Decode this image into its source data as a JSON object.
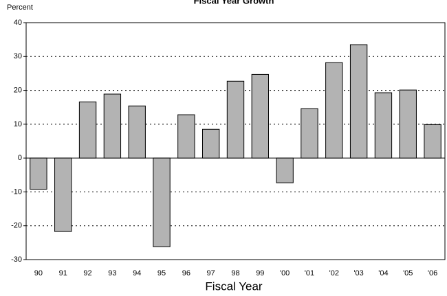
{
  "chart_data": {
    "type": "bar",
    "title": "Fiscal Year Growth",
    "y_label": "Percent",
    "x_label": "Fiscal Year",
    "categories": [
      "90",
      "91",
      "92",
      "93",
      "94",
      "95",
      "96",
      "97",
      "98",
      "99",
      "'00",
      "'01",
      "'02",
      "'03",
      "'04",
      "'05",
      "'06"
    ],
    "values": [
      -9.2,
      -21.7,
      16.6,
      18.9,
      15.4,
      -26.2,
      12.8,
      8.5,
      22.7,
      24.7,
      -7.3,
      14.6,
      28.2,
      33.5,
      19.3,
      20.1,
      9.9
    ],
    "color": "#b3b3b3",
    "ylim": [
      -30,
      40
    ],
    "yticks": [
      -30,
      -20,
      -10,
      0,
      10,
      20,
      30,
      40
    ],
    "grid": true
  }
}
